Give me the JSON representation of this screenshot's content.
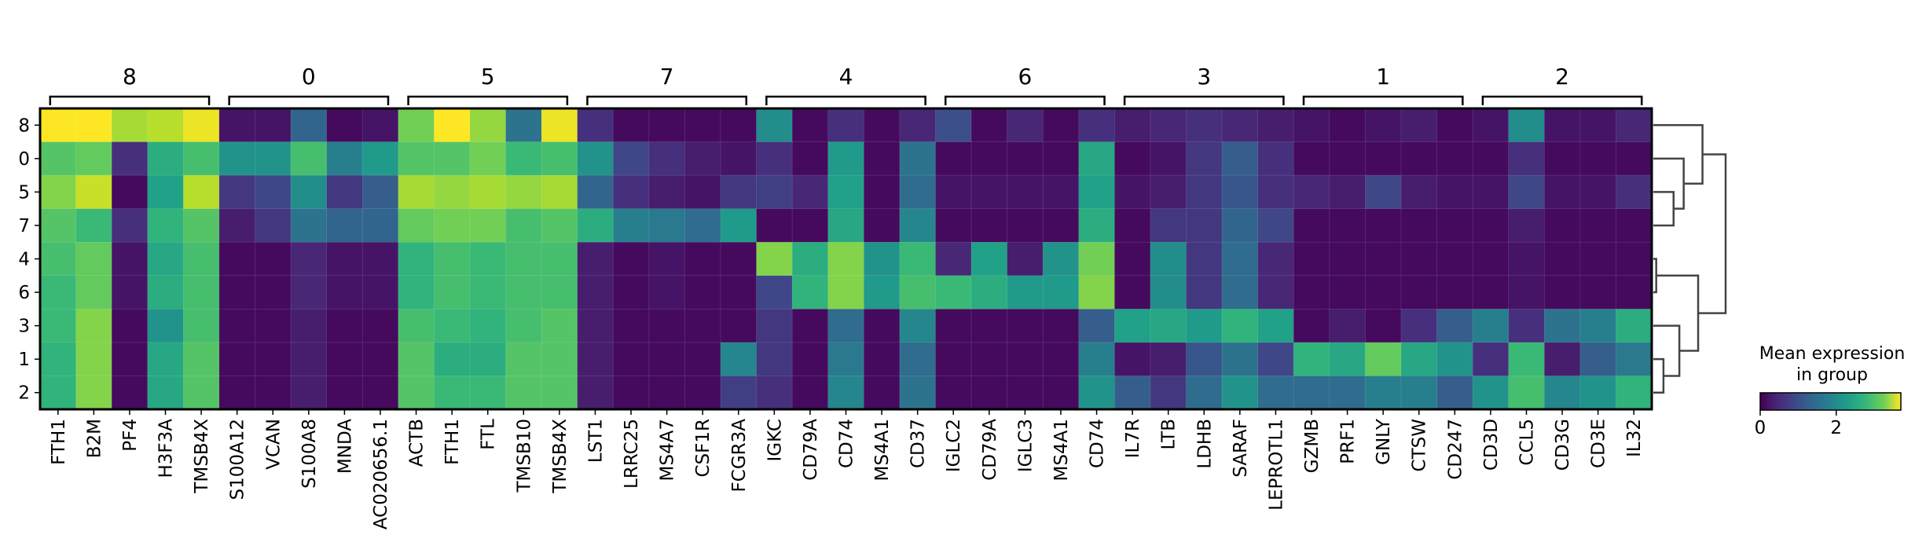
{
  "chart_data": {
    "type": "heatmap",
    "colormap": "viridis",
    "vmin": 0,
    "vmax": 3.7,
    "rows": [
      "8",
      "0",
      "5",
      "7",
      "4",
      "6",
      "3",
      "1",
      "2"
    ],
    "columns": [
      "FTH1",
      "B2M",
      "PF4",
      "H3F3A",
      "TMSB4X",
      "S100A12",
      "VCAN",
      "S100A8",
      "MNDA",
      "AC020656.1",
      "ACTB",
      "FTH1",
      "FTL",
      "TMSB10",
      "TMSB4X",
      "LST1",
      "LRRC25",
      "MS4A7",
      "CSF1R",
      "FCGR3A",
      "IGKC",
      "CD79A",
      "CD74",
      "MS4A1",
      "CD37",
      "IGLC2",
      "CD79A",
      "IGLC3",
      "MS4A1",
      "CD74",
      "IL7R",
      "LTB",
      "LDHB",
      "SARAF",
      "LEPROTL1",
      "GZMB",
      "PRF1",
      "GNLY",
      "CTSW",
      "CD247",
      "CD3D",
      "CCL5",
      "CD3G",
      "CD3E",
      "IL32"
    ],
    "groups": [
      {
        "label": "8",
        "start": 0,
        "end": 4
      },
      {
        "label": "0",
        "start": 5,
        "end": 9
      },
      {
        "label": "5",
        "start": 10,
        "end": 14
      },
      {
        "label": "7",
        "start": 15,
        "end": 19
      },
      {
        "label": "4",
        "start": 20,
        "end": 24
      },
      {
        "label": "6",
        "start": 25,
        "end": 29
      },
      {
        "label": "3",
        "start": 30,
        "end": 34
      },
      {
        "label": "1",
        "start": 35,
        "end": 39
      },
      {
        "label": "2",
        "start": 40,
        "end": 44
      }
    ],
    "values": [
      [
        3.7,
        3.7,
        3.2,
        3.3,
        3.6,
        0.2,
        0.2,
        1.2,
        0.1,
        0.2,
        2.9,
        3.7,
        3.1,
        1.4,
        3.6,
        0.5,
        0.1,
        0.1,
        0.1,
        0.1,
        1.8,
        0.1,
        0.5,
        0.1,
        0.4,
        0.9,
        0.1,
        0.4,
        0.1,
        0.5,
        0.3,
        0.4,
        0.5,
        0.4,
        0.3,
        0.2,
        0.1,
        0.2,
        0.3,
        0.1,
        0.2,
        1.8,
        0.2,
        0.2,
        0.4
      ],
      [
        2.7,
        2.8,
        0.5,
        2.3,
        2.6,
        1.9,
        1.9,
        2.6,
        1.6,
        2.0,
        2.7,
        2.7,
        2.9,
        2.5,
        2.6,
        1.9,
        0.8,
        0.5,
        0.3,
        0.2,
        0.5,
        0.1,
        2.0,
        0.1,
        1.4,
        0.1,
        0.1,
        0.1,
        0.1,
        2.2,
        0.1,
        0.2,
        0.6,
        1.1,
        0.5,
        0.1,
        0.1,
        0.1,
        0.1,
        0.1,
        0.1,
        0.5,
        0.1,
        0.1,
        0.1
      ],
      [
        3.0,
        3.4,
        0.1,
        2.1,
        3.3,
        0.6,
        0.8,
        1.8,
        0.6,
        1.1,
        3.2,
        3.1,
        3.2,
        3.1,
        3.2,
        1.2,
        0.5,
        0.3,
        0.2,
        0.6,
        0.7,
        0.4,
        2.1,
        0.1,
        1.3,
        0.2,
        0.2,
        0.2,
        0.2,
        2.1,
        0.2,
        0.3,
        0.6,
        1.0,
        0.5,
        0.4,
        0.3,
        0.8,
        0.3,
        0.2,
        0.2,
        0.8,
        0.2,
        0.2,
        0.5
      ],
      [
        2.7,
        2.5,
        0.5,
        2.4,
        2.7,
        0.3,
        0.6,
        1.4,
        1.2,
        1.2,
        2.8,
        2.9,
        2.9,
        2.6,
        2.7,
        2.3,
        1.6,
        1.5,
        1.3,
        2.0,
        0.1,
        0.1,
        2.2,
        0.1,
        1.7,
        0.1,
        0.1,
        0.1,
        0.1,
        2.3,
        0.1,
        0.6,
        0.6,
        1.2,
        0.8,
        0.1,
        0.1,
        0.1,
        0.1,
        0.1,
        0.1,
        0.3,
        0.1,
        0.1,
        0.1
      ],
      [
        2.6,
        2.8,
        0.2,
        2.2,
        2.6,
        0.1,
        0.1,
        0.4,
        0.2,
        0.2,
        2.4,
        2.6,
        2.5,
        2.6,
        2.6,
        0.3,
        0.1,
        0.2,
        0.1,
        0.1,
        3.0,
        2.3,
        3.0,
        1.9,
        2.5,
        0.4,
        2.1,
        0.3,
        1.9,
        2.9,
        0.1,
        1.8,
        0.6,
        1.3,
        0.4,
        0.1,
        0.1,
        0.1,
        0.1,
        0.1,
        0.1,
        0.2,
        0.1,
        0.1,
        0.1
      ],
      [
        2.5,
        2.8,
        0.2,
        2.3,
        2.6,
        0.1,
        0.1,
        0.4,
        0.2,
        0.2,
        2.4,
        2.6,
        2.5,
        2.6,
        2.6,
        0.3,
        0.1,
        0.2,
        0.1,
        0.1,
        0.8,
        2.4,
        3.0,
        2.0,
        2.6,
        2.5,
        2.3,
        2.0,
        2.0,
        3.0,
        0.1,
        1.8,
        0.6,
        1.3,
        0.4,
        0.1,
        0.1,
        0.1,
        0.1,
        0.1,
        0.1,
        0.2,
        0.1,
        0.1,
        0.1
      ],
      [
        2.5,
        3.0,
        0.1,
        1.9,
        2.6,
        0.1,
        0.1,
        0.3,
        0.1,
        0.1,
        2.6,
        2.5,
        2.4,
        2.6,
        2.7,
        0.3,
        0.1,
        0.1,
        0.1,
        0.1,
        0.6,
        0.1,
        1.3,
        0.1,
        1.7,
        0.1,
        0.1,
        0.1,
        0.1,
        1.1,
        2.1,
        2.2,
        2.0,
        2.4,
        2.1,
        0.1,
        0.3,
        0.1,
        0.5,
        1.1,
        1.6,
        0.5,
        1.4,
        1.6,
        2.3
      ],
      [
        2.4,
        3.0,
        0.1,
        2.2,
        2.7,
        0.1,
        0.1,
        0.3,
        0.1,
        0.1,
        2.7,
        2.3,
        2.3,
        2.7,
        2.7,
        0.3,
        0.1,
        0.1,
        0.1,
        1.7,
        0.6,
        0.1,
        1.5,
        0.1,
        1.3,
        0.1,
        0.1,
        0.1,
        0.1,
        1.6,
        0.2,
        0.3,
        1.0,
        1.4,
        0.8,
        2.4,
        2.2,
        2.8,
        2.2,
        1.9,
        0.5,
        2.5,
        0.3,
        1.1,
        1.5
      ],
      [
        2.4,
        3.0,
        0.1,
        2.2,
        2.7,
        0.1,
        0.1,
        0.3,
        0.1,
        0.1,
        2.7,
        2.5,
        2.5,
        2.7,
        2.7,
        0.3,
        0.1,
        0.1,
        0.1,
        0.7,
        0.5,
        0.1,
        1.7,
        0.1,
        1.4,
        0.1,
        0.1,
        0.1,
        0.1,
        1.9,
        1.1,
        0.6,
        1.3,
        1.9,
        1.3,
        1.3,
        1.3,
        1.6,
        1.6,
        1.1,
        1.9,
        2.6,
        1.7,
        1.9,
        2.4
      ]
    ],
    "dendrogram": {
      "leaves": [
        "8",
        "0",
        "5",
        "7",
        "4",
        "6",
        "3",
        "1",
        "2"
      ],
      "merges": [
        {
          "left": "4",
          "right": "6",
          "height": 0.04
        },
        {
          "left": "1",
          "right": "2",
          "height": 0.14
        },
        {
          "left": "5",
          "right": "7",
          "height": 0.28
        },
        {
          "left": "3",
          "right": "(1,2)",
          "height": 0.36
        },
        {
          "left": "0",
          "right": "(5,7)",
          "height": 0.42
        },
        {
          "left": "(4,6)",
          "right": "(3,(1,2))",
          "height": 0.62
        },
        {
          "left": "8",
          "right": "(0,(5,7))",
          "height": 0.68
        },
        {
          "left": "(8,(0,(5,7)))",
          "right": "((4,6),(3,(1,2)))",
          "height": 1.0
        }
      ]
    },
    "colorbar": {
      "title_line1": "Mean expression",
      "title_line2": "in group",
      "ticks": [
        {
          "value": 0,
          "label": "0"
        },
        {
          "value": 2,
          "label": "2"
        }
      ]
    }
  }
}
